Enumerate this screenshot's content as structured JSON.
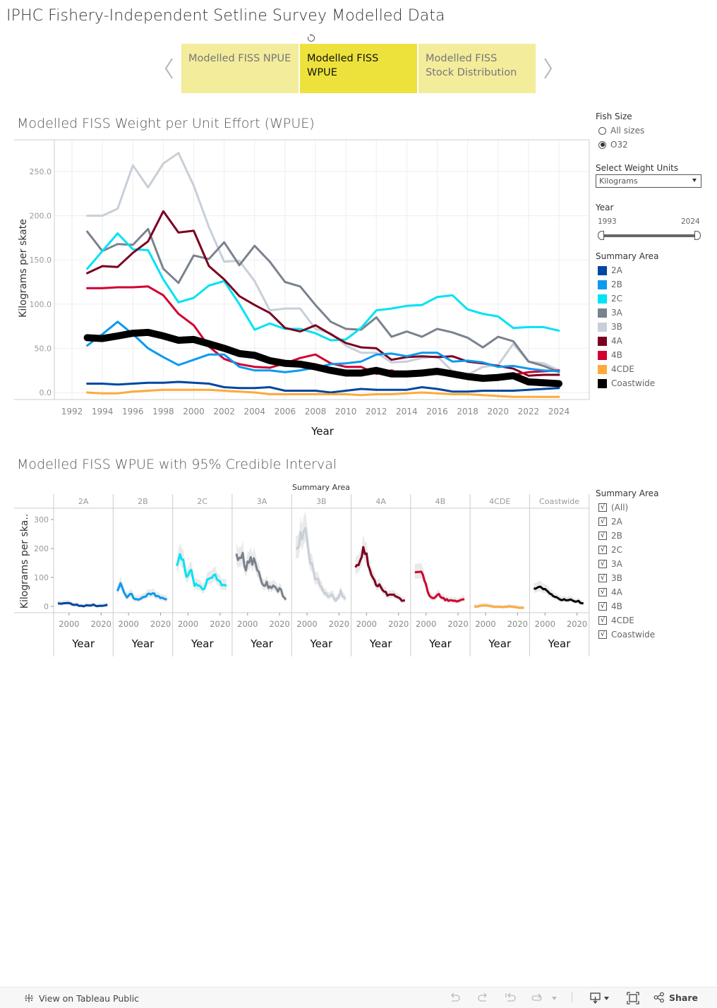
{
  "page": {
    "title": "IPHC Fishery-Independent Setline Survey Modelled Data"
  },
  "nav": {
    "prev_icon": "chevron-left-icon",
    "next_icon": "chevron-right-icon",
    "tabs": [
      {
        "label": "Modelled FISS NPUE",
        "active": false
      },
      {
        "label": "Modelled FISS WPUE",
        "active": true
      },
      {
        "label": "Modelled FISS Stock Distribution",
        "active": false
      }
    ]
  },
  "filters": {
    "fish_size": {
      "label": "Fish Size",
      "options": [
        {
          "label": "All sizes",
          "selected": false
        },
        {
          "label": "O32",
          "selected": true
        }
      ]
    },
    "weight_units": {
      "label": "Select Weight Units",
      "value": "Kilograms"
    },
    "year": {
      "label": "Year",
      "min": "1993",
      "max": "2024"
    },
    "summary_area_legend": {
      "label": "Summary Area",
      "items": [
        {
          "label": "2A",
          "color": "#0047a0"
        },
        {
          "label": "2B",
          "color": "#0a9af0"
        },
        {
          "label": "2C",
          "color": "#00e2f5"
        },
        {
          "label": "3A",
          "color": "#7a828e"
        },
        {
          "label": "3B",
          "color": "#c8cfd8"
        },
        {
          "label": "4A",
          "color": "#7a0020"
        },
        {
          "label": "4B",
          "color": "#d10030"
        },
        {
          "label": "4CDE",
          "color": "#ffa93a"
        },
        {
          "label": "Coastwide",
          "color": "#000000"
        }
      ]
    },
    "summary_area_filter": {
      "label": "Summary Area",
      "items": [
        {
          "label": "(All)",
          "checked": true
        },
        {
          "label": "2A",
          "checked": true
        },
        {
          "label": "2B",
          "checked": true
        },
        {
          "label": "2C",
          "checked": true
        },
        {
          "label": "3A",
          "checked": true
        },
        {
          "label": "3B",
          "checked": true
        },
        {
          "label": "4A",
          "checked": true
        },
        {
          "label": "4B",
          "checked": true
        },
        {
          "label": "4CDE",
          "checked": true
        },
        {
          "label": "Coastwide",
          "checked": true
        }
      ]
    }
  },
  "footer": {
    "view_on_label": "View on Tableau Public",
    "share_label": "Share"
  },
  "chart_data": [
    {
      "type": "line",
      "title": "Modelled FISS Weight per Unit Effort (WPUE)",
      "xlabel": "Year",
      "ylabel": "Kilograms per skate",
      "xlim": [
        1991,
        2026
      ],
      "ylim": [
        -7,
        280
      ],
      "xticks": [
        "1992",
        "1994",
        "1996",
        "1998",
        "2000",
        "2002",
        "2004",
        "2006",
        "2008",
        "2010",
        "2012",
        "2014",
        "2016",
        "2018",
        "2020",
        "2022",
        "2024"
      ],
      "yticks": [
        "0.0",
        "50.0",
        "100.0",
        "150.0",
        "200.0",
        "250.0"
      ],
      "grid": true,
      "legend": "right",
      "x": [
        1993,
        1994,
        1995,
        1996,
        1997,
        1998,
        1999,
        2000,
        2001,
        2002,
        2003,
        2004,
        2005,
        2006,
        2007,
        2008,
        2009,
        2010,
        2011,
        2012,
        2013,
        2014,
        2015,
        2016,
        2017,
        2018,
        2019,
        2020,
        2021,
        2022,
        2023,
        2024
      ],
      "series": [
        {
          "name": "3B",
          "values": [
            200,
            200,
            208,
            257,
            232,
            259,
            271,
            234,
            187,
            148,
            149,
            126,
            93,
            95,
            95,
            72,
            67,
            53,
            45,
            45,
            34,
            35,
            39,
            41,
            24,
            20,
            29,
            31,
            55,
            35,
            33,
            25
          ]
        },
        {
          "name": "3A",
          "values": [
            182,
            160,
            168,
            167,
            185,
            140,
            124,
            155,
            151,
            170,
            144,
            166,
            148,
            125,
            120,
            99,
            80,
            72,
            71,
            85,
            63,
            69,
            63,
            72,
            68,
            62,
            51,
            63,
            58,
            35,
            30,
            23
          ]
        },
        {
          "name": "2C",
          "values": [
            140,
            160,
            180,
            162,
            161,
            128,
            102,
            107,
            121,
            126,
            100,
            71,
            78,
            72,
            72,
            67,
            59,
            60,
            73,
            93,
            95,
            98,
            99,
            108,
            110,
            94,
            89,
            86,
            73,
            74,
            74,
            70
          ]
        },
        {
          "name": "4A",
          "values": [
            135,
            143,
            142,
            158,
            171,
            205,
            181,
            183,
            143,
            128,
            109,
            99,
            90,
            73,
            69,
            76,
            66,
            56,
            51,
            50,
            37,
            40,
            41,
            40,
            41,
            35,
            33,
            30,
            27,
            19,
            20,
            20
          ]
        },
        {
          "name": "4B",
          "values": [
            118,
            118,
            119,
            119,
            120,
            110,
            89,
            76,
            52,
            38,
            32,
            29,
            28,
            33,
            39,
            43,
            33,
            29,
            29,
            21,
            25,
            19,
            21,
            21,
            19,
            20,
            17,
            18,
            20,
            23,
            24,
            25
          ]
        },
        {
          "name": "2B",
          "values": [
            53,
            66,
            80,
            66,
            50,
            40,
            31,
            37,
            43,
            43,
            29,
            25,
            25,
            23,
            25,
            28,
            32,
            33,
            35,
            43,
            44,
            41,
            45,
            45,
            35,
            36,
            34,
            29,
            30,
            27,
            25,
            24
          ]
        },
        {
          "name": "Coastwide",
          "values": [
            62,
            61,
            64,
            67,
            68,
            64,
            59,
            60,
            55,
            50,
            44,
            42,
            36,
            33,
            32,
            29,
            25,
            22,
            22,
            25,
            21,
            21,
            22,
            24,
            21,
            18,
            16,
            17,
            19,
            12,
            11,
            10
          ]
        },
        {
          "name": "2A",
          "values": [
            10,
            10,
            9,
            10,
            11,
            11,
            12,
            11,
            10,
            6,
            5,
            5,
            6,
            2,
            2,
            2,
            0,
            2,
            4,
            3,
            3,
            3,
            6,
            4,
            1,
            1,
            2,
            2,
            2,
            3,
            4,
            5
          ]
        },
        {
          "name": "4CDE",
          "values": [
            0,
            -1,
            -1,
            1,
            2,
            3,
            3,
            3,
            3,
            2,
            1,
            0,
            -2,
            -2,
            -2,
            -2,
            -2,
            -2,
            -3,
            -2,
            -2,
            -1,
            0,
            -1,
            -2,
            -2,
            -3,
            -4,
            -5,
            -5,
            -5,
            -5
          ]
        }
      ]
    },
    {
      "type": "line",
      "title": "Modelled FISS WPUE with 95% Credible Interval",
      "facet_header": "Summary Area",
      "facets": [
        "2A",
        "2B",
        "2C",
        "3A",
        "3B",
        "4A",
        "4B",
        "4CDE",
        "Coastwide"
      ],
      "xlabel": "Year",
      "ylabel": "Kilograms per ska..",
      "yticks": [
        "0",
        "100",
        "200",
        "300"
      ],
      "ylim": [
        -25,
        340
      ],
      "xticks": [
        "2000",
        "2020"
      ],
      "band": "95% credible interval (light grey)",
      "same_series_as": "Modelled FISS Weight per Unit Effort (WPUE)"
    }
  ]
}
